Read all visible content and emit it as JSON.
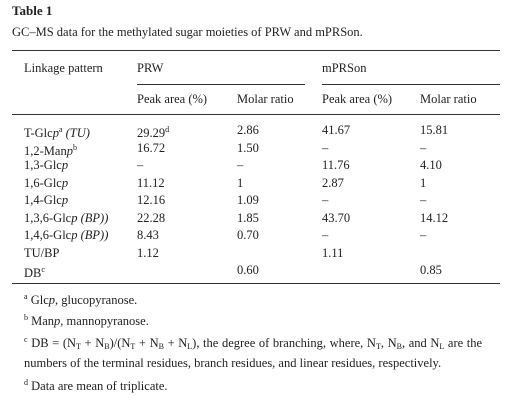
{
  "title": "Table 1",
  "caption": "GC–MS data for the methylated sugar moieties of PRW and mPRSon.",
  "table": {
    "header": {
      "linkage": "Linkage pattern",
      "groups": [
        "PRW",
        "mPRSon"
      ],
      "columns": [
        "Peak area (%)",
        "Molar ratio",
        "Peak area (%)",
        "Molar ratio"
      ]
    },
    "rows": [
      {
        "label": [
          {
            "text": "T-Glc"
          },
          {
            "text": "p",
            "style": "italic"
          },
          {
            "text": "a",
            "style": "sup"
          },
          {
            "text": " (TU)",
            "style": "italic"
          }
        ],
        "cells": [
          [
            {
              "text": "29.29"
            },
            {
              "text": "d",
              "style": "sup"
            }
          ],
          [
            {
              "text": "2.86"
            }
          ],
          [
            {
              "text": "41.67"
            }
          ],
          [
            {
              "text": "15.81"
            }
          ]
        ]
      },
      {
        "label": [
          {
            "text": "1,2-Man"
          },
          {
            "text": "p",
            "style": "italic"
          },
          {
            "text": "b",
            "style": "sup"
          }
        ],
        "cells": [
          [
            {
              "text": "16.72"
            }
          ],
          [
            {
              "text": "1.50"
            }
          ],
          [
            {
              "text": "–"
            }
          ],
          [
            {
              "text": "–"
            }
          ]
        ]
      },
      {
        "label": [
          {
            "text": "1,3-Glc"
          },
          {
            "text": "p",
            "style": "italic"
          }
        ],
        "cells": [
          [
            {
              "text": "–"
            }
          ],
          [
            {
              "text": "–"
            }
          ],
          [
            {
              "text": "11.76"
            }
          ],
          [
            {
              "text": "4.10"
            }
          ]
        ]
      },
      {
        "label": [
          {
            "text": "1,6-Glc"
          },
          {
            "text": "p",
            "style": "italic"
          }
        ],
        "cells": [
          [
            {
              "text": "11.12"
            }
          ],
          [
            {
              "text": "1"
            }
          ],
          [
            {
              "text": "2.87"
            }
          ],
          [
            {
              "text": "1"
            }
          ]
        ]
      },
      {
        "label": [
          {
            "text": "1,4-Glc"
          },
          {
            "text": "p",
            "style": "italic"
          }
        ],
        "cells": [
          [
            {
              "text": "12.16"
            }
          ],
          [
            {
              "text": "1.09"
            }
          ],
          [
            {
              "text": "–"
            }
          ],
          [
            {
              "text": "–"
            }
          ]
        ]
      },
      {
        "label": [
          {
            "text": "1,3,6-Glc"
          },
          {
            "text": "p (BP))",
            "style": "italic"
          }
        ],
        "cells": [
          [
            {
              "text": "22.28"
            }
          ],
          [
            {
              "text": "1.85"
            }
          ],
          [
            {
              "text": "43.70"
            }
          ],
          [
            {
              "text": "14.12"
            }
          ]
        ]
      },
      {
        "label": [
          {
            "text": "1,4,6-Glc"
          },
          {
            "text": "p (BP))",
            "style": "italic"
          }
        ],
        "cells": [
          [
            {
              "text": "8.43"
            }
          ],
          [
            {
              "text": "0.70"
            }
          ],
          [
            {
              "text": "–"
            }
          ],
          [
            {
              "text": "–"
            }
          ]
        ]
      },
      {
        "label": [
          {
            "text": "TU/BP"
          }
        ],
        "cells": [
          [
            {
              "text": "1.12"
            }
          ],
          null,
          [
            {
              "text": "1.11"
            }
          ],
          null
        ]
      },
      {
        "label": [
          {
            "text": "DB"
          },
          {
            "text": "c",
            "style": "sup"
          }
        ],
        "cells": [
          null,
          [
            {
              "text": "0.60"
            }
          ],
          null,
          [
            {
              "text": "0.85"
            }
          ]
        ]
      }
    ]
  },
  "footnotes": [
    {
      "mark": "a",
      "parts": [
        {
          "text": "Glc"
        },
        {
          "text": "p",
          "style": "italic"
        },
        {
          "text": ", glucopyranose."
        }
      ]
    },
    {
      "mark": "b",
      "parts": [
        {
          "text": "Man"
        },
        {
          "text": "p",
          "style": "italic"
        },
        {
          "text": ", mannopyranose."
        }
      ]
    },
    {
      "mark": "c",
      "parts": [
        {
          "text": "DB = (N"
        },
        {
          "text": "T",
          "style": "sub"
        },
        {
          "text": " + N"
        },
        {
          "text": "B",
          "style": "sub"
        },
        {
          "text": ")/(N"
        },
        {
          "text": "T",
          "style": "sub"
        },
        {
          "text": " + N"
        },
        {
          "text": "B",
          "style": "sub"
        },
        {
          "text": " + N"
        },
        {
          "text": "L",
          "style": "sub"
        },
        {
          "text": "), the degree of branching, where, N"
        },
        {
          "text": "T",
          "style": "sub"
        },
        {
          "text": ", N"
        },
        {
          "text": "B",
          "style": "sub"
        },
        {
          "text": ", and N"
        },
        {
          "text": "L",
          "style": "sub"
        },
        {
          "text": " are the numbers of the terminal residues, branch residues, and linear residues, respectively."
        }
      ]
    },
    {
      "mark": "d",
      "parts": [
        {
          "text": "Data are mean of triplicate."
        }
      ]
    }
  ]
}
